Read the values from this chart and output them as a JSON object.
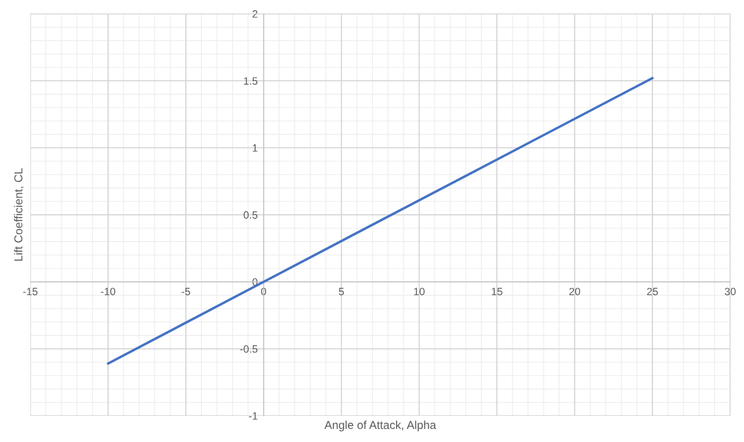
{
  "chart_data": {
    "type": "line",
    "xlabel": "Angle of Attack, Alpha",
    "ylabel": "Lift Coefficient, CL",
    "x": [
      -10,
      0,
      25
    ],
    "series": [
      {
        "color": "#4472c4",
        "values": [
          -0.61,
          0,
          1.52
        ]
      }
    ],
    "xlim": [
      -15,
      30
    ],
    "xticks": [
      -15,
      -10,
      -5,
      0,
      5,
      10,
      15,
      20,
      25,
      30
    ],
    "ylim": [
      -1,
      2
    ],
    "yticks": [
      -1,
      -0.5,
      0,
      0.5,
      1,
      1.5,
      2
    ],
    "grid": true,
    "marker": "none",
    "line_style": "solid"
  }
}
